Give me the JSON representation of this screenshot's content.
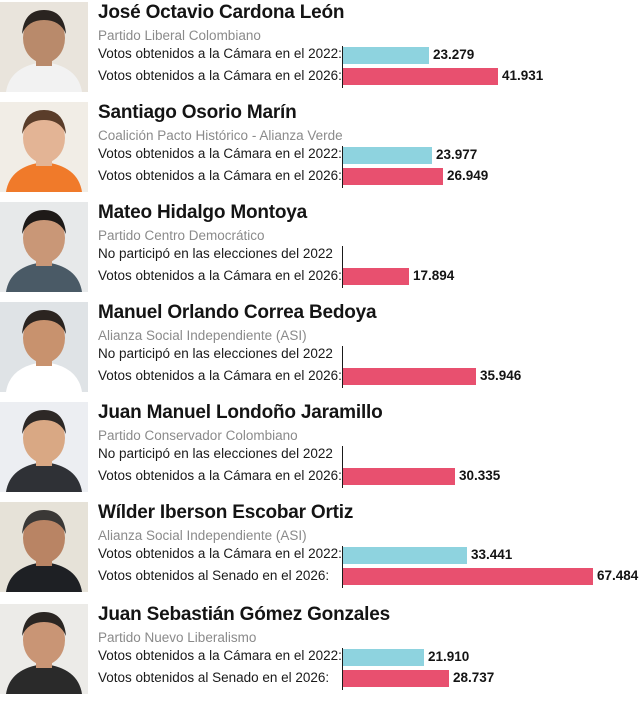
{
  "chart_data": {
    "type": "bar",
    "title": "",
    "xlabel": "",
    "ylabel": "",
    "xlim": [
      0,
      67484
    ],
    "bar_colors": {
      "first_row": "#8ed3df",
      "second_row": "#e8506f"
    },
    "candidates": [
      {
        "name": "José Octavio Cardona León",
        "party": "Partido Liberal Colombiano",
        "rows": [
          {
            "label": "Votos obtenidos a la Cámara en el 2022:",
            "value": 23279,
            "display": "23.279"
          },
          {
            "label": "Votos obtenidos a la Cámara en el 2026:",
            "value": 41931,
            "display": "41.931"
          }
        ]
      },
      {
        "name": "Santiago Osorio Marín",
        "party": "Coalición Pacto Histórico - Alianza Verde",
        "rows": [
          {
            "label": "Votos obtenidos a la Cámara en el 2022:",
            "value": 23977,
            "display": "23.977"
          },
          {
            "label": "Votos obtenidos a la Cámara en el 2026:",
            "value": 26949,
            "display": "26.949"
          }
        ]
      },
      {
        "name": "Mateo Hidalgo Montoya",
        "party": "Partido Centro Democrático",
        "rows": [
          {
            "label": "No participó en las elecciones del 2022",
            "value": null,
            "display": ""
          },
          {
            "label": "Votos obtenidos a la Cámara en el 2026:",
            "value": 17894,
            "display": "17.894"
          }
        ]
      },
      {
        "name": "Manuel Orlando Correa Bedoya",
        "party": "Alianza Social Independiente (ASI)",
        "rows": [
          {
            "label": "No participó en las elecciones del 2022",
            "value": null,
            "display": ""
          },
          {
            "label": "Votos obtenidos a la Cámara en el 2026:",
            "value": 35946,
            "display": "35.946"
          }
        ]
      },
      {
        "name": "Juan Manuel Londoño Jaramillo",
        "party": "Partido Conservador Colombiano",
        "rows": [
          {
            "label": "No participó en las elecciones del 2022",
            "value": null,
            "display": ""
          },
          {
            "label": "Votos obtenidos a la Cámara en el 2026:",
            "value": 30335,
            "display": "30.335"
          }
        ]
      },
      {
        "name": "Wílder Iberson Escobar Ortiz",
        "party": "Alianza Social Independiente (ASI)",
        "rows": [
          {
            "label": "Votos obtenidos a la Cámara en el 2022:",
            "value": 33441,
            "display": "33.441"
          },
          {
            "label": "Votos obtenidos al Senado en el 2026:",
            "value": 67484,
            "display": "67.484"
          }
        ]
      },
      {
        "name": "Juan Sebastián Gómez Gonzales",
        "party": "Partido Nuevo Liberalismo",
        "rows": [
          {
            "label": "Votos obtenidos a la Cámara en el 2022:",
            "value": 21910,
            "display": "21.910"
          },
          {
            "label": "Votos obtenidos al Senado en el 2026:",
            "value": 28737,
            "display": "28.737"
          }
        ]
      }
    ]
  }
}
